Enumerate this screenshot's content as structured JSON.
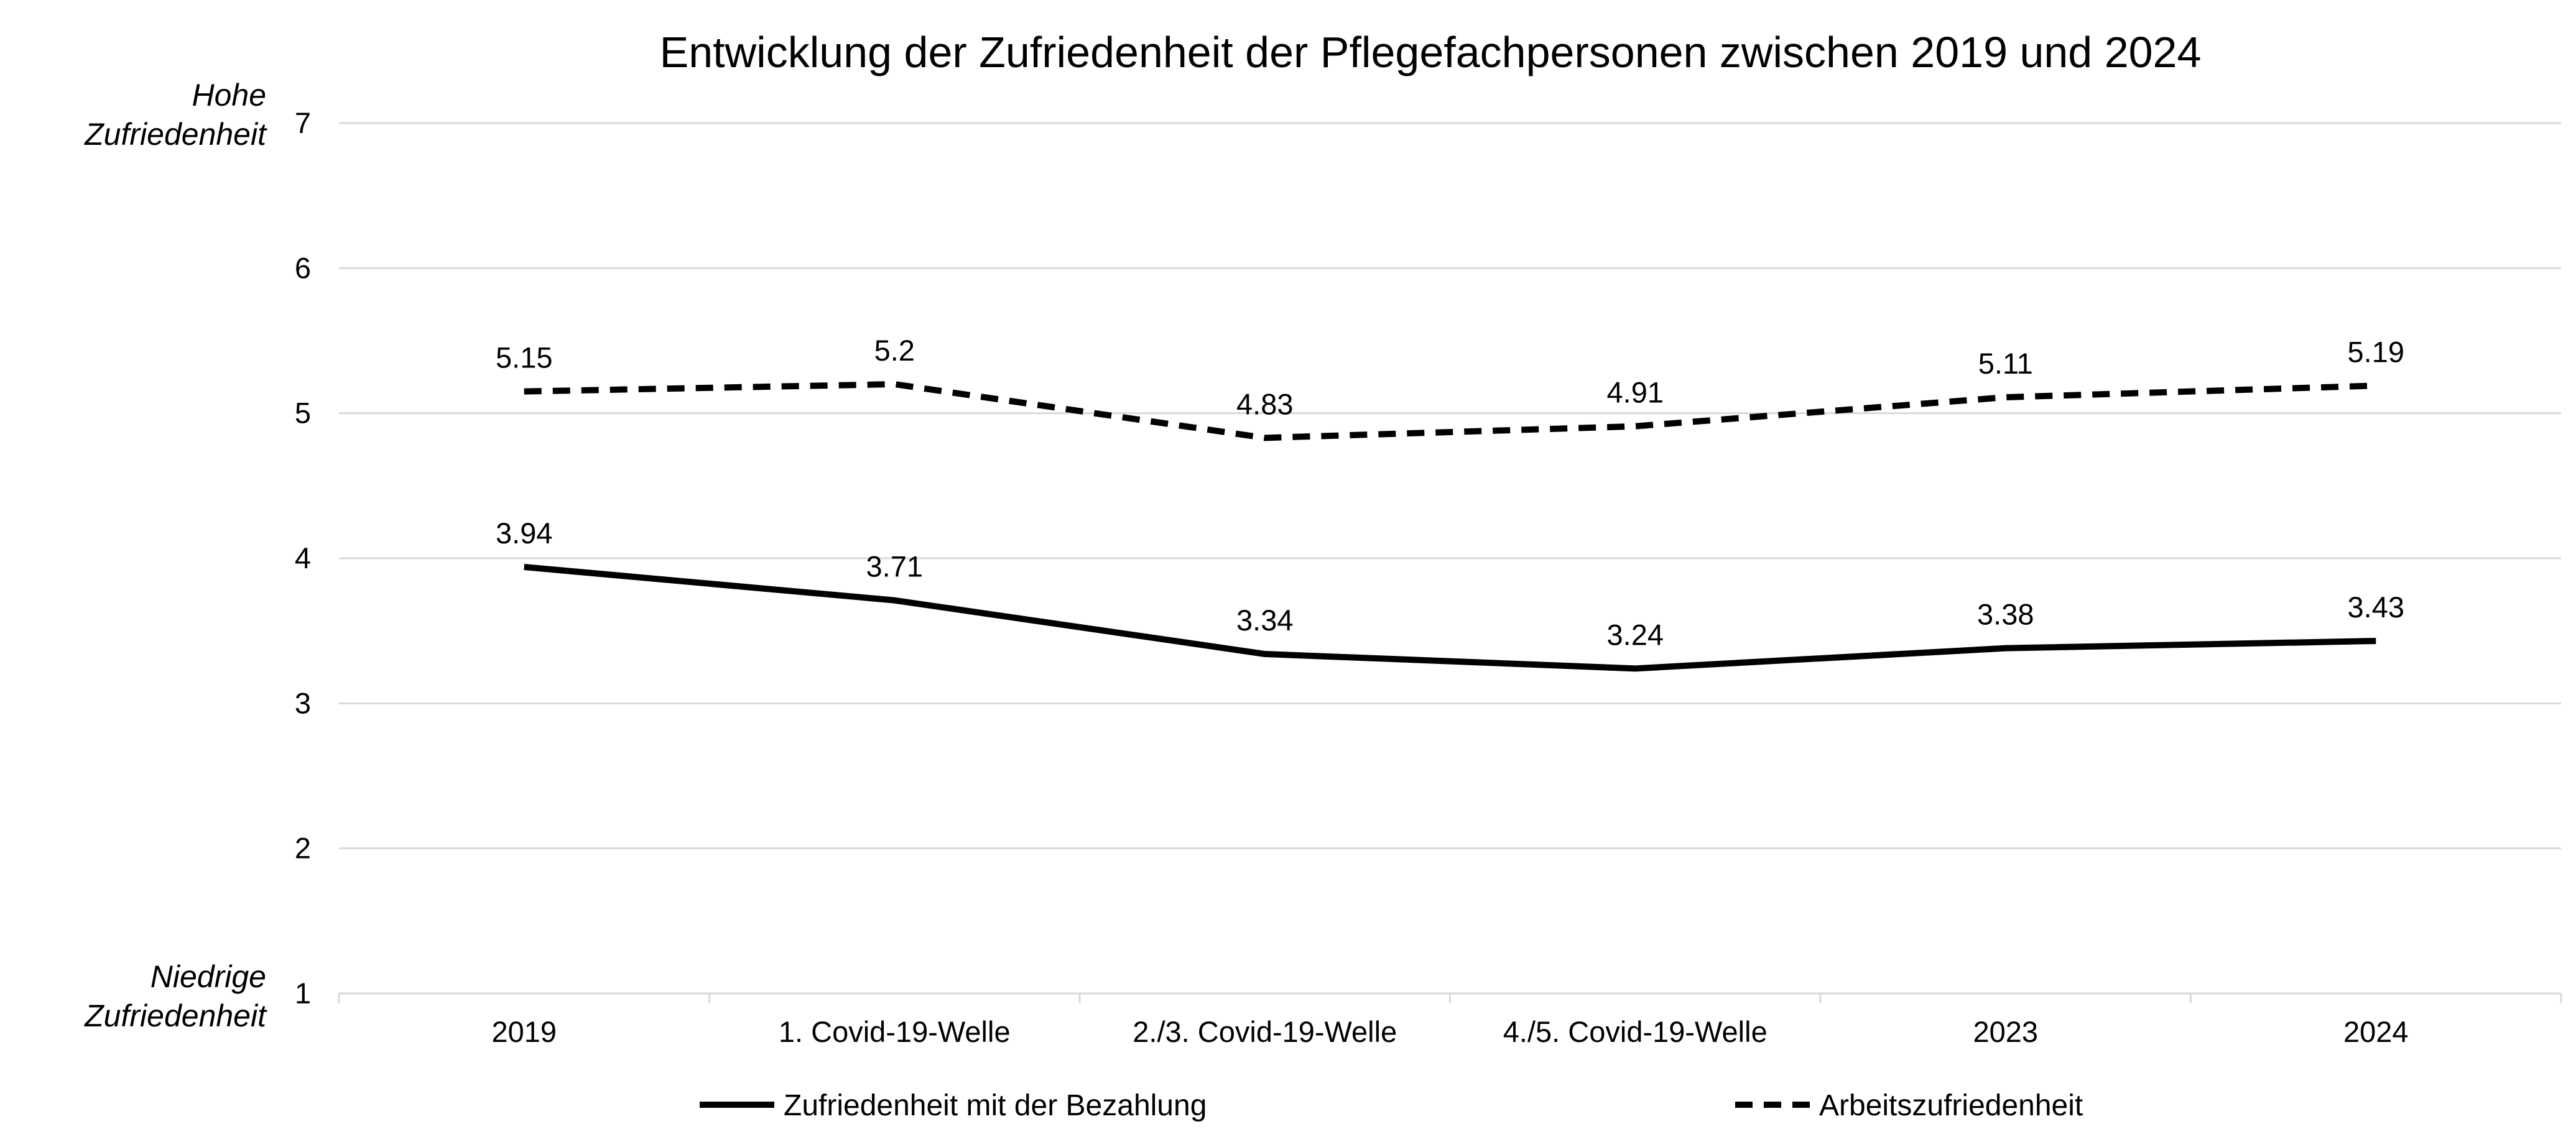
{
  "chart_data": {
    "type": "line",
    "title": "Entwicklung der Zufriedenheit der Pflegefachpersonen zwischen 2019 und 2024",
    "categories": [
      "2019",
      "1. Covid-19-Welle",
      "2./3. Covid-19-Welle",
      "4./5. Covid-19-Welle",
      "2023",
      "2024"
    ],
    "ylim": [
      1,
      7
    ],
    "yticks": [
      1,
      2,
      3,
      4,
      5,
      6,
      7
    ],
    "y_top_annotation": [
      "Hohe",
      "Zufriedenheit"
    ],
    "y_bottom_annotation": [
      "Niedrige",
      "Zufriedenheit"
    ],
    "grid": true,
    "legend_position": "bottom",
    "series": [
      {
        "name": "Zufriedenheit mit der Bezahlung",
        "values": [
          3.94,
          3.71,
          3.34,
          3.24,
          3.38,
          3.43
        ],
        "labels": [
          "3.94",
          "3.71",
          "3.34",
          "3.24",
          "3.38",
          "3.43"
        ],
        "color": "#000000",
        "style": "solid"
      },
      {
        "name": "Arbeitszufriedenheit",
        "values": [
          5.15,
          5.2,
          4.83,
          4.91,
          5.11,
          5.19
        ],
        "labels": [
          "5.15",
          "5.2",
          "4.83",
          "4.91",
          "5.11",
          "5.19"
        ],
        "color": "#000000",
        "style": "dashed"
      }
    ]
  }
}
